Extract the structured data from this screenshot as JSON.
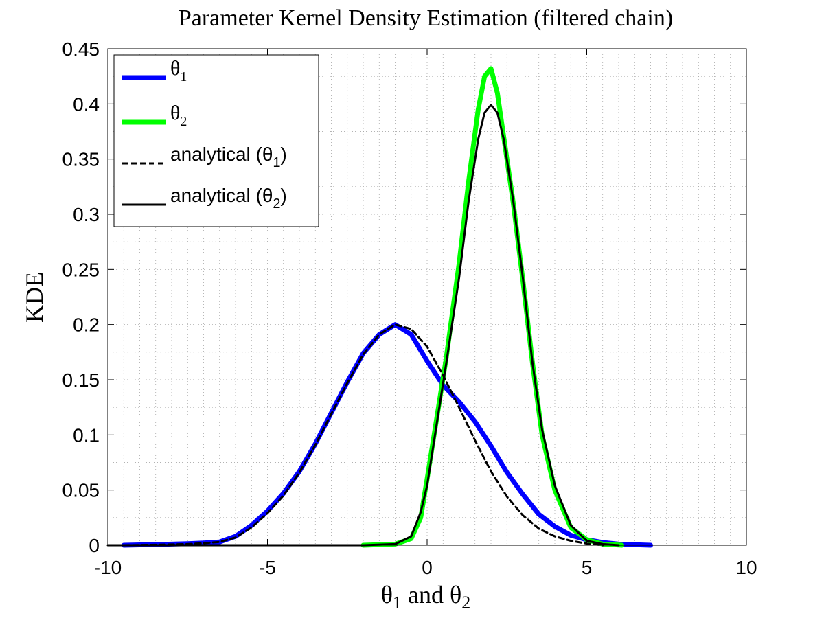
{
  "chart_data": {
    "type": "line",
    "title": "Parameter Kernel Density Estimation (filtered chain)",
    "xlabel": {
      "prefix": "θ",
      "sub1": "1",
      "mid": " and θ",
      "sub2": "2"
    },
    "ylabel": "KDE",
    "xlim": [
      -10,
      10
    ],
    "ylim": [
      0,
      0.45
    ],
    "xticks": [
      -10,
      -5,
      0,
      5,
      10
    ],
    "xtick_labels": [
      "-10",
      "-5",
      "0",
      "5",
      "10"
    ],
    "yticks": [
      0,
      0.05,
      0.1,
      0.15,
      0.2,
      0.25,
      0.3,
      0.35,
      0.4,
      0.45
    ],
    "ytick_labels": [
      "0",
      "0.05",
      "0.1",
      "0.15",
      "0.2",
      "0.25",
      "0.3",
      "0.35",
      "0.4",
      "0.45"
    ],
    "grid": "major and minor, dotted",
    "legend_position": "top-left",
    "series": [
      {
        "key": "theta1",
        "legend": {
          "base": "θ",
          "sub": "1",
          "suffix": ""
        },
        "color": "#0000ff",
        "style": "solid-thick",
        "x": [
          -9.5,
          -8.5,
          -7.5,
          -7.0,
          -6.5,
          -6.0,
          -5.5,
          -5.0,
          -4.5,
          -4.0,
          -3.5,
          -3.0,
          -2.5,
          -2.0,
          -1.5,
          -1.0,
          -0.5,
          0.0,
          0.5,
          1.0,
          1.5,
          2.0,
          2.5,
          3.0,
          3.5,
          4.0,
          4.5,
          5.0,
          5.5,
          6.0,
          6.5,
          7.0
        ],
        "y": [
          0.0,
          0.0006,
          0.0014,
          0.002,
          0.003,
          0.008,
          0.018,
          0.031,
          0.047,
          0.067,
          0.092,
          0.12,
          0.148,
          0.174,
          0.191,
          0.2,
          0.191,
          0.167,
          0.145,
          0.13,
          0.112,
          0.09,
          0.066,
          0.046,
          0.028,
          0.017,
          0.009,
          0.005,
          0.0025,
          0.001,
          0.0005,
          0.0
        ]
      },
      {
        "key": "theta2",
        "legend": {
          "base": "θ",
          "sub": "2",
          "suffix": ""
        },
        "color": "#00ff00",
        "style": "solid-thick",
        "x": [
          -2.0,
          -1.0,
          -0.5,
          -0.2,
          0.0,
          0.3,
          0.6,
          1.0,
          1.3,
          1.6,
          1.8,
          2.0,
          2.2,
          2.4,
          2.7,
          3.0,
          3.3,
          3.6,
          4.0,
          4.5,
          5.0,
          5.5,
          6.1
        ],
        "y": [
          0.0,
          0.001,
          0.006,
          0.025,
          0.06,
          0.115,
          0.17,
          0.255,
          0.33,
          0.395,
          0.425,
          0.432,
          0.41,
          0.37,
          0.31,
          0.24,
          0.165,
          0.1,
          0.05,
          0.016,
          0.005,
          0.001,
          0.0
        ]
      },
      {
        "key": "analytical_theta1",
        "legend": {
          "base": "analytical (θ",
          "sub": "1",
          "suffix": ")"
        },
        "color": "#000000",
        "style": "dashed",
        "x": [
          -9.5,
          -8.5,
          -7.5,
          -7.0,
          -6.5,
          -6.0,
          -5.5,
          -5.0,
          -4.5,
          -4.0,
          -3.5,
          -3.0,
          -2.5,
          -2.0,
          -1.5,
          -1.0,
          -0.5,
          0.0,
          0.5,
          1.0,
          1.5,
          2.0,
          2.5,
          3.0,
          3.5,
          4.0,
          4.5,
          5.0,
          5.5
        ],
        "y": [
          0.0,
          0.0004,
          0.001,
          0.0018,
          0.003,
          0.007,
          0.016,
          0.029,
          0.045,
          0.066,
          0.091,
          0.119,
          0.147,
          0.173,
          0.191,
          0.2,
          0.196,
          0.18,
          0.154,
          0.125,
          0.095,
          0.067,
          0.044,
          0.027,
          0.015,
          0.008,
          0.004,
          0.0015,
          0.0
        ]
      },
      {
        "key": "analytical_theta2",
        "legend": {
          "base": "analytical (θ",
          "sub": "2",
          "suffix": ")"
        },
        "color": "#000000",
        "style": "solid-thin",
        "x": [
          -10.0,
          -2.0,
          -1.0,
          -0.5,
          -0.2,
          0.0,
          0.3,
          0.6,
          1.0,
          1.3,
          1.6,
          1.8,
          2.0,
          2.2,
          2.4,
          2.7,
          3.0,
          3.3,
          3.6,
          4.0,
          4.5,
          5.0,
          5.5,
          6.0
        ],
        "y": [
          0.0,
          0.0,
          0.001,
          0.008,
          0.03,
          0.054,
          0.11,
          0.165,
          0.242,
          0.312,
          0.368,
          0.392,
          0.399,
          0.392,
          0.368,
          0.312,
          0.242,
          0.165,
          0.105,
          0.054,
          0.018,
          0.004,
          0.001,
          0.0
        ]
      }
    ]
  }
}
